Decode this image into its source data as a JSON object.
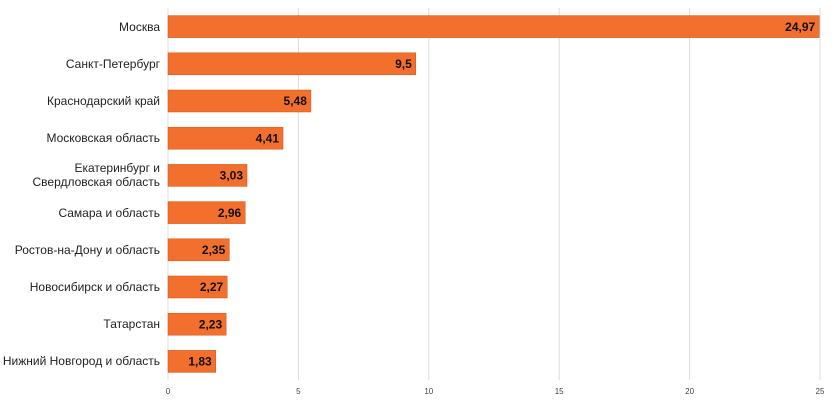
{
  "chart_data": {
    "type": "barh",
    "categories": [
      "Москва",
      "Санкт-Петербург",
      "Краснодарский край",
      "Московская область",
      "Екатеринбург и Свердловская область",
      "Самара и область",
      "Ростов-на-Дону и область",
      "Новосибирск и область",
      "Татарстан",
      "Нижний Новгород и область"
    ],
    "values": [
      24.97,
      9.5,
      5.48,
      4.41,
      3.03,
      2.96,
      2.35,
      2.27,
      2.23,
      1.83
    ],
    "value_labels": [
      "24,97",
      "9,5",
      "5,48",
      "4,41",
      "3,03",
      "2,96",
      "2,35",
      "2,27",
      "2,23",
      "1,83"
    ],
    "color": "#f26f2e",
    "xlim": [
      0,
      25
    ],
    "xticks": [
      0,
      5,
      10,
      15,
      20,
      25
    ],
    "grid": true
  }
}
